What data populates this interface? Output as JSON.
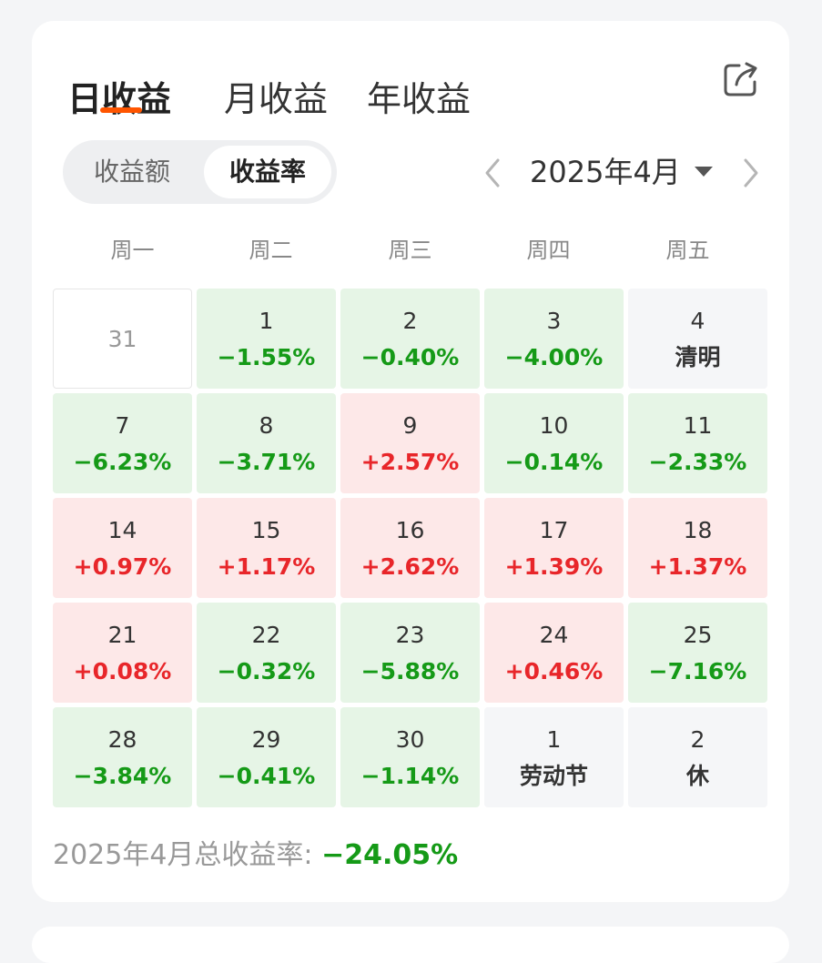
{
  "tabs": [
    {
      "label": "日收益",
      "active": true
    },
    {
      "label": "月收益",
      "active": false
    },
    {
      "label": "年收益",
      "active": false
    }
  ],
  "icons": {
    "share": "share-icon",
    "prev": "chevron-left-icon",
    "next": "chevron-right-icon",
    "dropdown": "caret-down-icon"
  },
  "toggle": {
    "options": [
      "收益额",
      "收益率"
    ],
    "selected": "收益率"
  },
  "month": {
    "label": "2025年4月"
  },
  "weekdays": [
    "周一",
    "周二",
    "周三",
    "周四",
    "周五"
  ],
  "colors": {
    "accent": "#ff5500",
    "gain": "#e8262a",
    "loss": "#159a17",
    "gain_bg": "#fde8e8",
    "loss_bg": "#e6f5e6"
  },
  "calendar": {
    "rows": [
      [
        {
          "day": "31",
          "value": "",
          "kind": "empty"
        },
        {
          "day": "1",
          "value": "−1.55%",
          "kind": "green"
        },
        {
          "day": "2",
          "value": "−0.40%",
          "kind": "green"
        },
        {
          "day": "3",
          "value": "−4.00%",
          "kind": "green"
        },
        {
          "day": "4",
          "value": "清明",
          "kind": "holiday"
        }
      ],
      [
        {
          "day": "7",
          "value": "−6.23%",
          "kind": "green"
        },
        {
          "day": "8",
          "value": "−3.71%",
          "kind": "green"
        },
        {
          "day": "9",
          "value": "+2.57%",
          "kind": "red"
        },
        {
          "day": "10",
          "value": "−0.14%",
          "kind": "green"
        },
        {
          "day": "11",
          "value": "−2.33%",
          "kind": "green"
        }
      ],
      [
        {
          "day": "14",
          "value": "+0.97%",
          "kind": "red"
        },
        {
          "day": "15",
          "value": "+1.17%",
          "kind": "red"
        },
        {
          "day": "16",
          "value": "+2.62%",
          "kind": "red"
        },
        {
          "day": "17",
          "value": "+1.39%",
          "kind": "red"
        },
        {
          "day": "18",
          "value": "+1.37%",
          "kind": "red"
        }
      ],
      [
        {
          "day": "21",
          "value": "+0.08%",
          "kind": "red"
        },
        {
          "day": "22",
          "value": "−0.32%",
          "kind": "green"
        },
        {
          "day": "23",
          "value": "−5.88%",
          "kind": "green"
        },
        {
          "day": "24",
          "value": "+0.46%",
          "kind": "red"
        },
        {
          "day": "25",
          "value": "−7.16%",
          "kind": "green"
        }
      ],
      [
        {
          "day": "28",
          "value": "−3.84%",
          "kind": "green"
        },
        {
          "day": "29",
          "value": "−0.41%",
          "kind": "green"
        },
        {
          "day": "30",
          "value": "−1.14%",
          "kind": "green"
        },
        {
          "day": "1",
          "value": "劳动节",
          "kind": "holiday"
        },
        {
          "day": "2",
          "value": "休",
          "kind": "holiday"
        }
      ]
    ]
  },
  "summary": {
    "label": "2025年4月总收益率: ",
    "value": "−24.05%"
  }
}
